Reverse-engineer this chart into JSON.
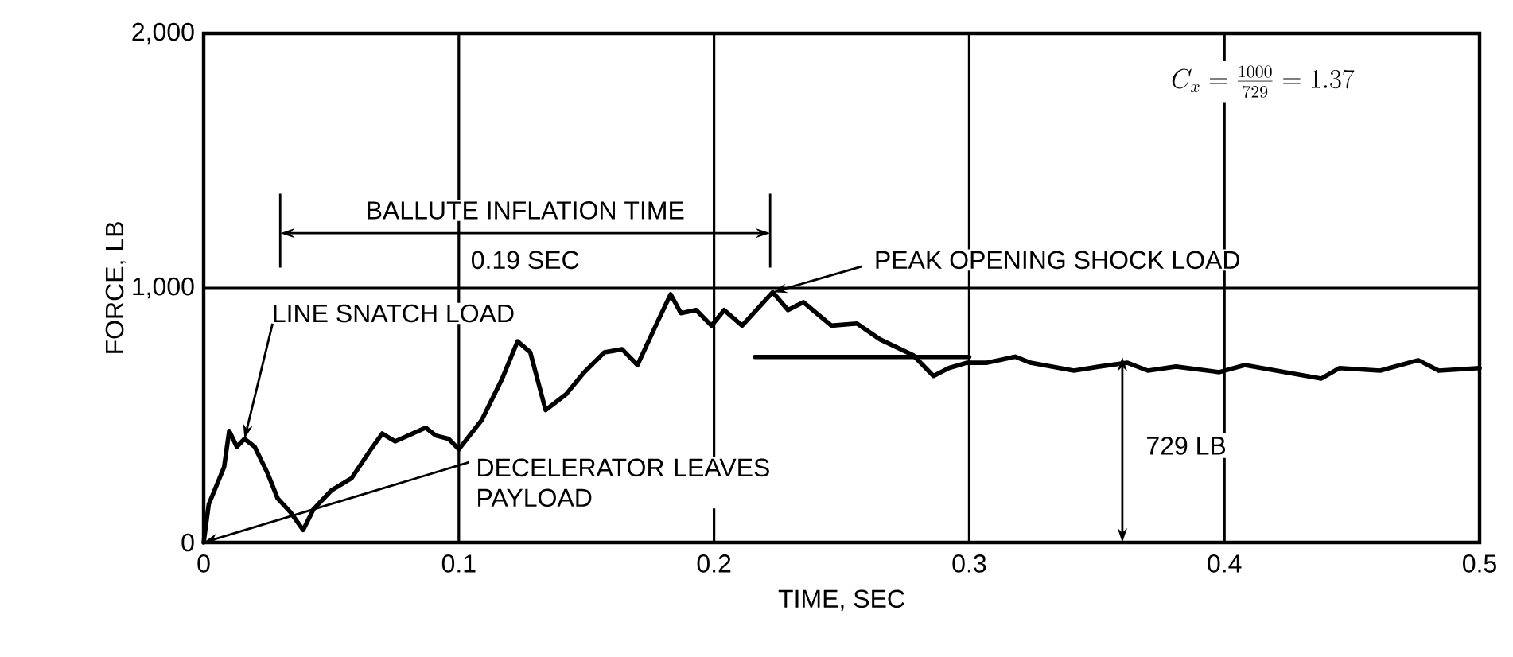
{
  "chart_data": {
    "type": "line",
    "xlabel": "TIME, SEC",
    "ylabel": "FORCE, LB",
    "xlim": [
      0,
      0.5
    ],
    "ylim": [
      0,
      2000
    ],
    "xticks": [
      0,
      0.1,
      0.2,
      0.3,
      0.4,
      0.5
    ],
    "yticks": [
      0,
      {
        "value": 1000,
        "label": "1,000"
      },
      {
        "value": 2000,
        "label": "2,000"
      }
    ],
    "grid": true,
    "marker": "none",
    "line_style": "solid",
    "series": [
      {
        "color": "#000000",
        "x": [
          0,
          0.002,
          0.008,
          0.01,
          0.013,
          0.016,
          0.02,
          0.025,
          0.029,
          0.034,
          0.039,
          0.043,
          0.05,
          0.058,
          0.065,
          0.07,
          0.075,
          0.087,
          0.091,
          0.096,
          0.1,
          0.109,
          0.117,
          0.123,
          0.128,
          0.134,
          0.142,
          0.149,
          0.157,
          0.164,
          0.17,
          0.178,
          0.183,
          0.187,
          0.193,
          0.199,
          0.204,
          0.211,
          0.223,
          0.229,
          0.235,
          0.246,
          0.256,
          0.265,
          0.278,
          0.286,
          0.292,
          0.299,
          0.307,
          0.318,
          0.324,
          0.341,
          0.351,
          0.362,
          0.37,
          0.381,
          0.398,
          0.408,
          0.438,
          0.445,
          0.461,
          0.476,
          0.484,
          0.5
        ],
        "values": [
          0,
          150,
          296,
          438,
          376,
          407,
          376,
          273,
          173,
          119,
          49,
          130,
          204,
          253,
          358,
          428,
          397,
          451,
          420,
          407,
          366,
          481,
          644,
          790,
          747,
          520,
          582,
          667,
          747,
          759,
          697,
          870,
          975,
          901,
          913,
          852,
          913,
          852,
          983,
          913,
          944,
          852,
          860,
          798,
          736,
          654,
          685,
          706,
          706,
          730,
          706,
          675,
          691,
          706,
          675,
          691,
          669,
          697,
          644,
          685,
          675,
          716,
          675,
          685
        ]
      },
      {
        "type": "line",
        "color": "#000000",
        "x": [
          0.216,
          0.3
        ],
        "values": [
          729,
          729
        ]
      }
    ],
    "annotations": [
      {
        "text": "LINE SNATCH LOAD",
        "x": 0.016,
        "y": 407
      },
      {
        "text": "DECELERATOR LEAVES PAYLOAD",
        "x": 0,
        "y": 0
      },
      {
        "text": "PEAK OPENING SHOCK LOAD",
        "x": 0.223,
        "y": 983
      },
      "BALLUTE INFLATION TIME",
      "0.19 SEC",
      "729 LB",
      "C_{x} = \\frac{1000}{729} = 1.37"
    ]
  }
}
